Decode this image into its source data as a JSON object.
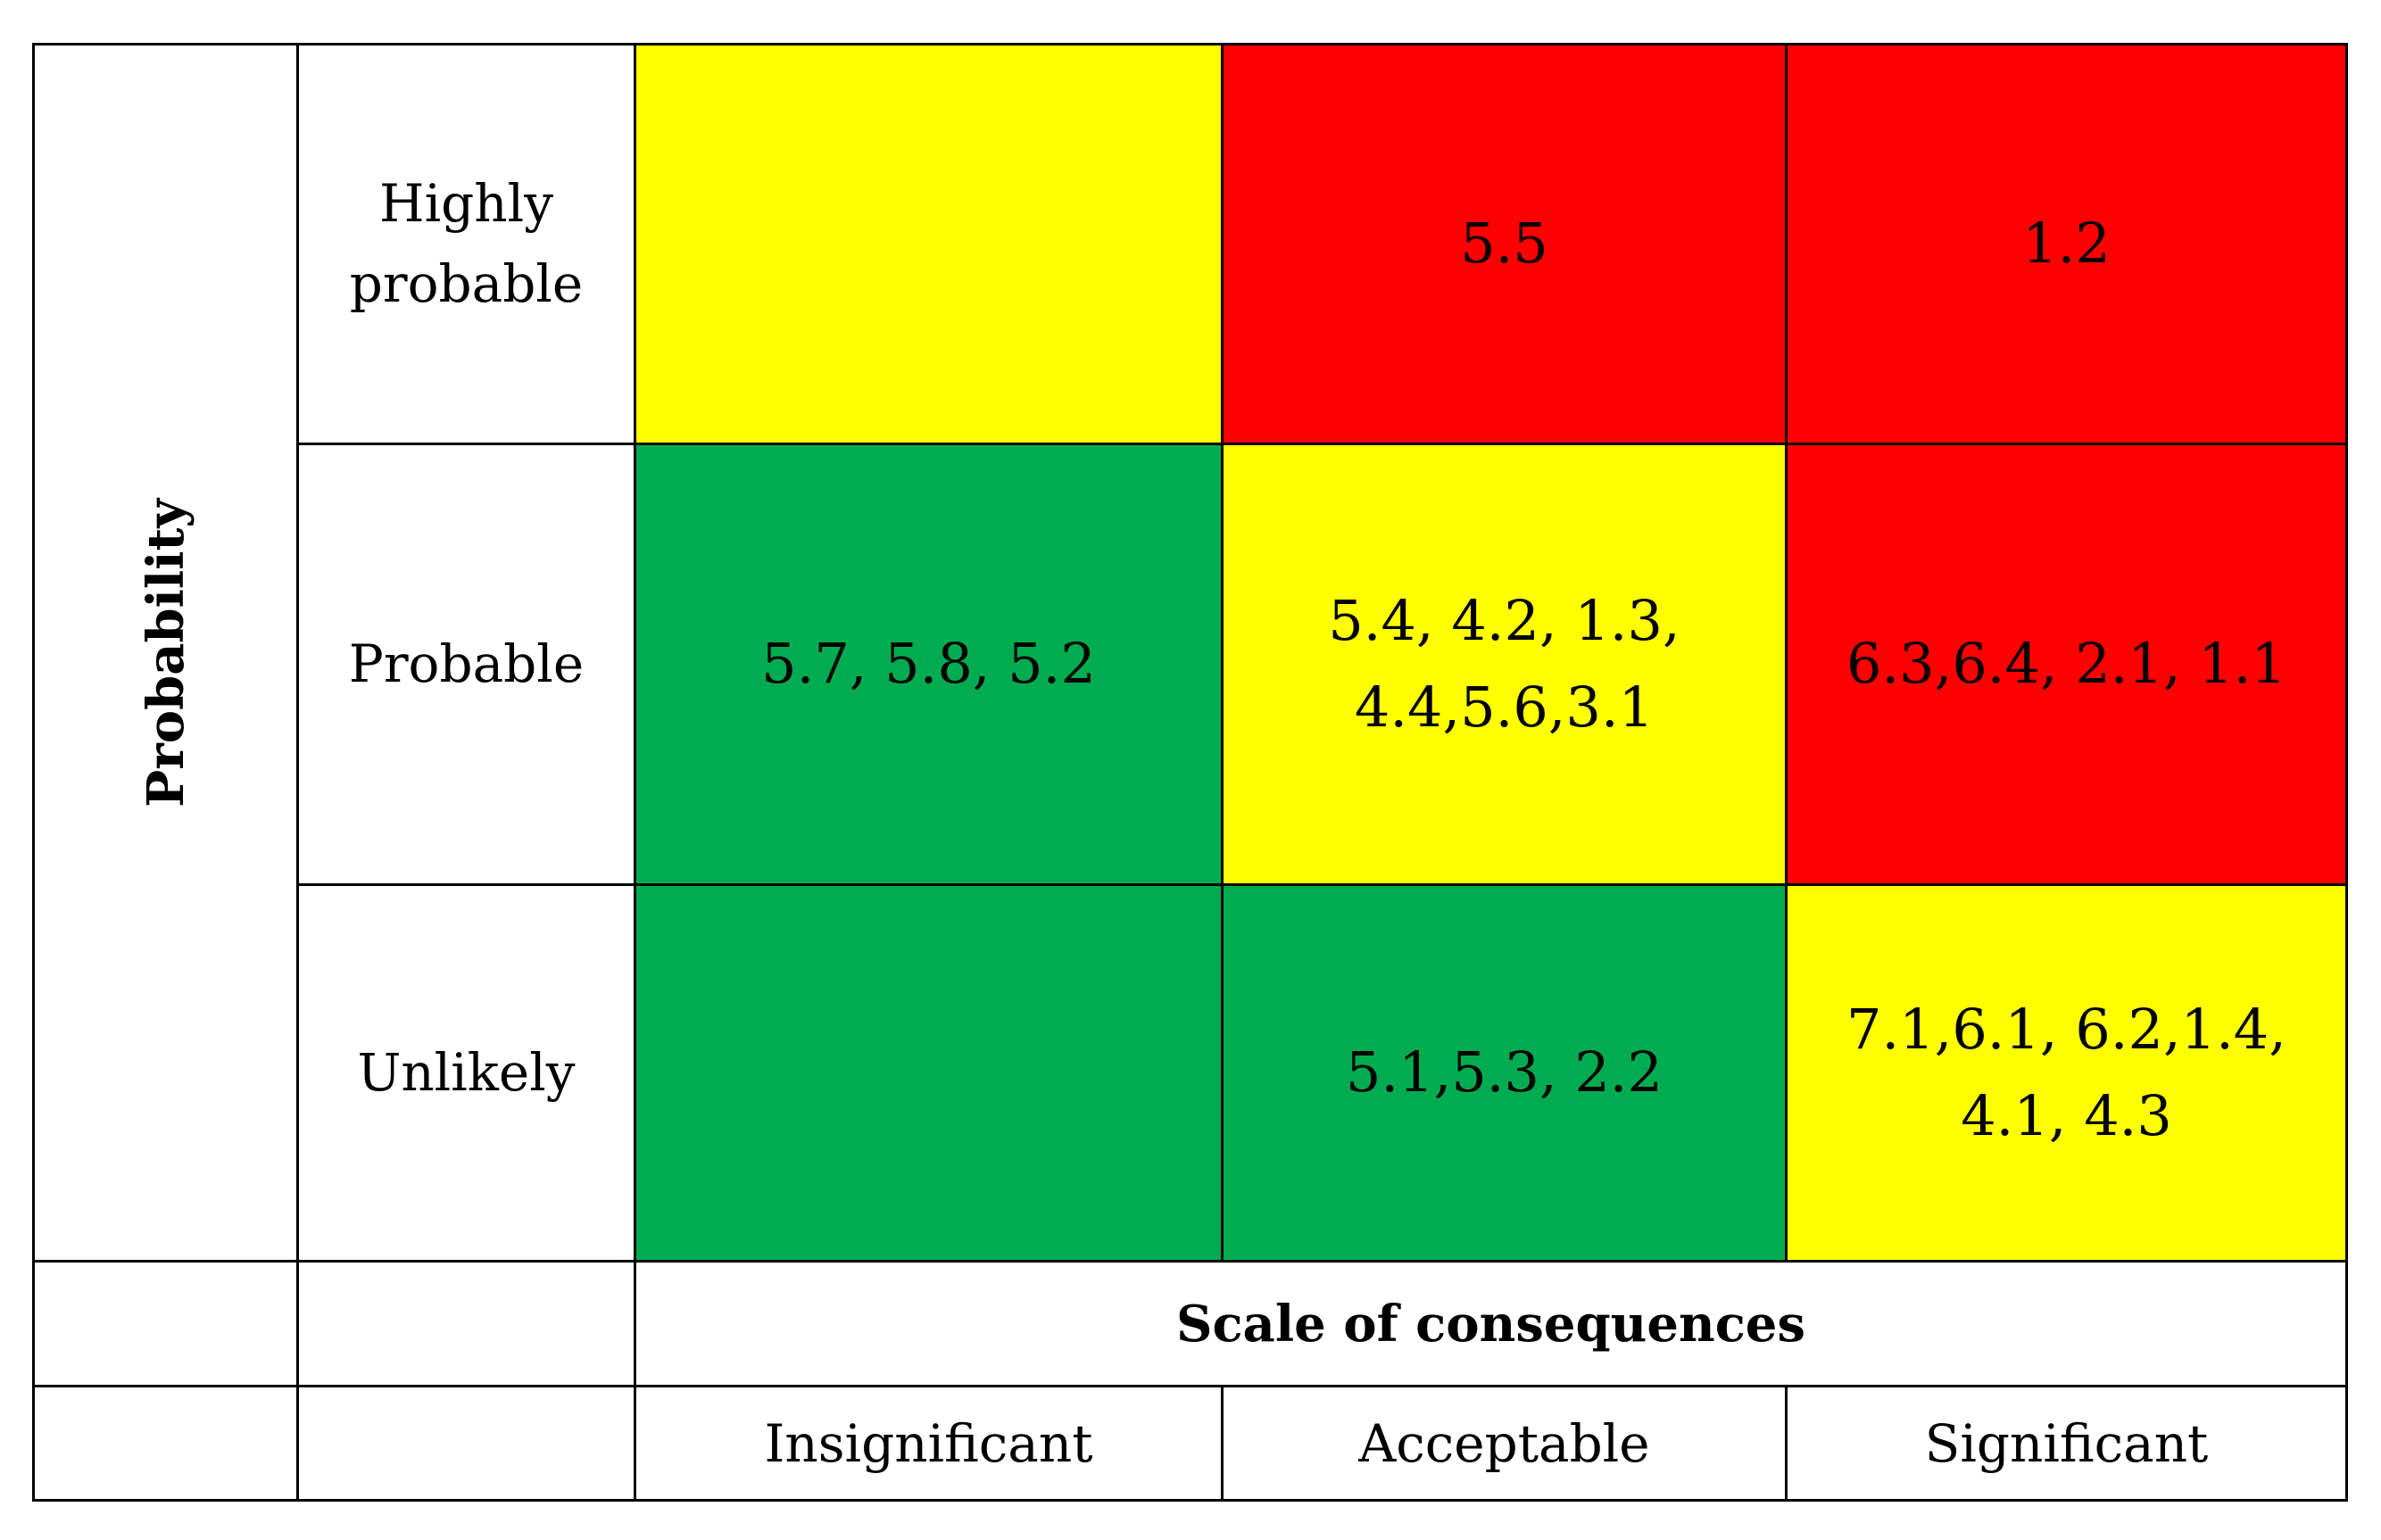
{
  "axis_labels": {
    "probability": "Probability",
    "consequences": "Scale of consequences"
  },
  "rows": [
    {
      "label": "Highly probable",
      "cells": [
        {
          "text": "",
          "color": "#ffff00"
        },
        {
          "text": "5.5",
          "color": "#ff0000"
        },
        {
          "text": "1.2",
          "color": "#ff0000"
        }
      ]
    },
    {
      "label": "Probable",
      "cells": [
        {
          "text": "5.7, 5.8, 5.2",
          "color": "#00ac4f"
        },
        {
          "text": "5.4, 4.2, 1.3, 4.4,5.6,3.1",
          "color": "#ffff00"
        },
        {
          "text": "6.3,6.4, 2.1, 1.1",
          "color": "#ff0000"
        }
      ]
    },
    {
      "label": "Unlikely",
      "cells": [
        {
          "text": "",
          "color": "#00ac4f"
        },
        {
          "text": "5.1,5.3, 2.2",
          "color": "#00ac4f"
        },
        {
          "text": "7.1,6.1, 6.2,1.4, 4.1, 4.3",
          "color": "#ffff00"
        }
      ]
    }
  ],
  "columns": [
    "Insignificant",
    "Acceptable",
    "Significant"
  ]
}
